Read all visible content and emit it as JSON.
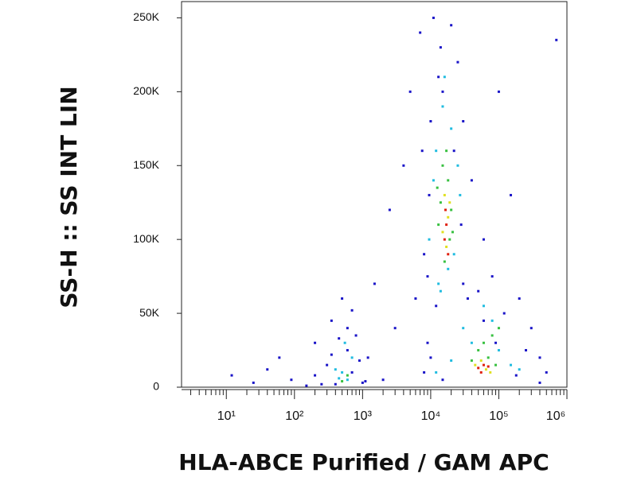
{
  "chart_data": {
    "type": "scatter",
    "x_label": "HLA-ABCE  Purified / GAM APC",
    "y_label": "SS-H :: SS INT LIN",
    "xscale": "log",
    "xlim": [
      2.2,
      1000000
    ],
    "ylim": [
      0,
      261000
    ],
    "xticks": [
      {
        "value": 10,
        "label": "10¹"
      },
      {
        "value": 100,
        "label": "10²"
      },
      {
        "value": 1000,
        "label": "10³"
      },
      {
        "value": 10000,
        "label": "10⁴"
      },
      {
        "value": 100000,
        "label": "10⁵"
      },
      {
        "value": 1000000,
        "label": "10⁶"
      }
    ],
    "xminor_ticks": [
      3,
      4,
      5,
      6,
      7,
      8,
      9,
      20,
      30,
      40,
      50,
      60,
      70,
      80,
      90,
      200,
      300,
      400,
      500,
      600,
      700,
      800,
      900,
      2000,
      3000,
      4000,
      5000,
      6000,
      7000,
      8000,
      9000,
      20000,
      30000,
      40000,
      50000,
      60000,
      70000,
      80000,
      90000,
      200000,
      300000,
      400000,
      500000,
      600000,
      700000,
      800000,
      900000
    ],
    "yticks": [
      {
        "value": 0,
        "label": "0"
      },
      {
        "value": 50000,
        "label": "50K"
      },
      {
        "value": 100000,
        "label": "100K"
      },
      {
        "value": 150000,
        "label": "150K"
      },
      {
        "value": 200000,
        "label": "200K"
      },
      {
        "value": 250000,
        "label": "250K"
      }
    ],
    "series": [
      {
        "color": "#1a14c8",
        "x": [
          12,
          25,
          40,
          60,
          90,
          150,
          200,
          300,
          350,
          400,
          500,
          600,
          700,
          800,
          1000,
          1200,
          1500,
          2000,
          2500,
          3000,
          4000,
          5000,
          6000,
          7000,
          8000,
          9000,
          11000,
          14000,
          20000,
          25000,
          30000,
          40000,
          60000,
          80000,
          100000,
          150000,
          200000,
          300000,
          400000,
          500000,
          700000,
          9000,
          10000,
          13000,
          30000,
          12000,
          35000,
          200,
          350,
          600,
          900,
          250,
          450,
          1100,
          700,
          15000,
          22000,
          9500,
          28000,
          7500,
          120000,
          250000,
          60000,
          15000,
          10000,
          180000,
          400000,
          50000,
          90000,
          8000
        ],
        "values": [
          8000,
          3000,
          12000,
          20000,
          5000,
          1000,
          30000,
          15000,
          45000,
          2000,
          60000,
          25000,
          10000,
          35000,
          3000,
          20000,
          70000,
          5000,
          120000,
          40000,
          150000,
          200000,
          60000,
          240000,
          90000,
          30000,
          250000,
          230000,
          245000,
          220000,
          180000,
          140000,
          100000,
          75000,
          200000,
          130000,
          60000,
          40000,
          20000,
          10000,
          235000,
          75000,
          180000,
          210000,
          70000,
          55000,
          60000,
          8000,
          22000,
          40000,
          18000,
          2000,
          33000,
          4000,
          52000,
          200000,
          160000,
          130000,
          110000,
          160000,
          50000,
          25000,
          45000,
          5000,
          20000,
          8000,
          3000,
          65000,
          30000,
          10000
        ]
      },
      {
        "color": "#20bce0",
        "x": [
          15000,
          20000,
          12000,
          25000,
          11000,
          18000,
          13000,
          22000,
          16000,
          500,
          600,
          400,
          700,
          550,
          30000,
          80000,
          100000,
          150000,
          40000,
          60000,
          200000,
          12000,
          20000,
          450,
          14000,
          27000,
          9500
        ],
        "values": [
          190000,
          175000,
          160000,
          150000,
          140000,
          80000,
          70000,
          90000,
          210000,
          10000,
          5000,
          12000,
          20000,
          30000,
          40000,
          45000,
          25000,
          15000,
          30000,
          55000,
          12000,
          10000,
          18000,
          6000,
          65000,
          130000,
          100000
        ]
      },
      {
        "color": "#38c040",
        "x": [
          15000,
          18000,
          14000,
          20000,
          17000,
          13000,
          19000,
          16000,
          60000,
          80000,
          50000,
          70000,
          90000,
          40000,
          100000,
          600,
          500,
          21000,
          12500
        ],
        "values": [
          150000,
          140000,
          125000,
          120000,
          160000,
          110000,
          100000,
          85000,
          30000,
          35000,
          25000,
          20000,
          15000,
          18000,
          40000,
          8000,
          4000,
          105000,
          135000
        ]
      },
      {
        "color": "#e0e020",
        "x": [
          16000,
          18000,
          15000,
          17000,
          55000,
          65000,
          45000,
          75000,
          19000
        ],
        "values": [
          130000,
          115000,
          105000,
          95000,
          18000,
          12000,
          15000,
          10000,
          125000
        ]
      },
      {
        "color": "#e02010",
        "x": [
          17000,
          16000,
          18000,
          60000,
          50000,
          70000,
          55000,
          16500
        ],
        "values": [
          110000,
          100000,
          90000,
          15000,
          13000,
          14000,
          10000,
          120000
        ]
      }
    ]
  }
}
